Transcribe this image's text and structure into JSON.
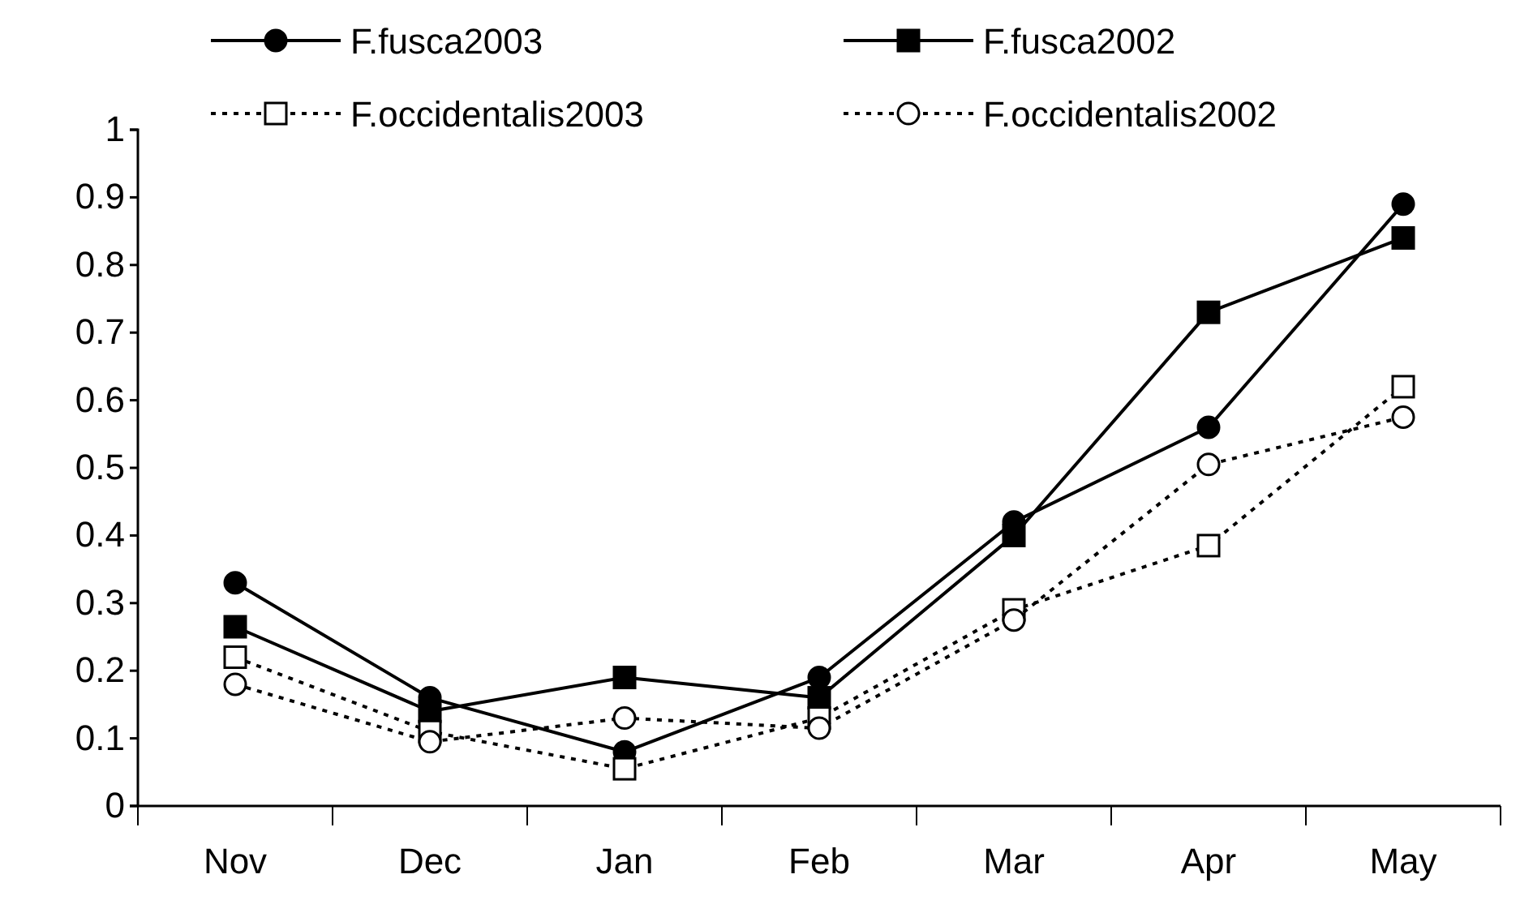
{
  "chart_data": {
    "type": "line",
    "categories": [
      "Nov",
      "Dec",
      "Jan",
      "Feb",
      "Mar",
      "Apr",
      "May"
    ],
    "ylim": [
      0,
      1
    ],
    "yticks": [
      0,
      0.1,
      0.2,
      0.3,
      0.4,
      0.5,
      0.6,
      0.7,
      0.8,
      0.9,
      1
    ],
    "grid": false,
    "legend": "top",
    "series": [
      {
        "name": "F.fusca2003",
        "color": "#000000",
        "marker": "circle",
        "line_style": "solid",
        "values": [
          0.33,
          0.16,
          0.08,
          0.19,
          0.42,
          0.56,
          0.89
        ]
      },
      {
        "name": "F.fusca2002",
        "color": "#000000",
        "marker": "square",
        "line_style": "solid",
        "values": [
          0.265,
          0.14,
          0.19,
          0.16,
          0.4,
          0.73,
          0.84
        ]
      },
      {
        "name": "F.occidentalis2003",
        "color": "#000000",
        "marker": "square",
        "line_style": "dotted",
        "values": [
          0.22,
          0.11,
          0.055,
          0.13,
          0.29,
          0.385,
          0.62
        ]
      },
      {
        "name": "F.occidentalis2002",
        "color": "#000000",
        "marker": "circle",
        "line_style": "dotted",
        "values": [
          0.18,
          0.095,
          0.13,
          0.115,
          0.275,
          0.505,
          0.575
        ]
      }
    ]
  }
}
